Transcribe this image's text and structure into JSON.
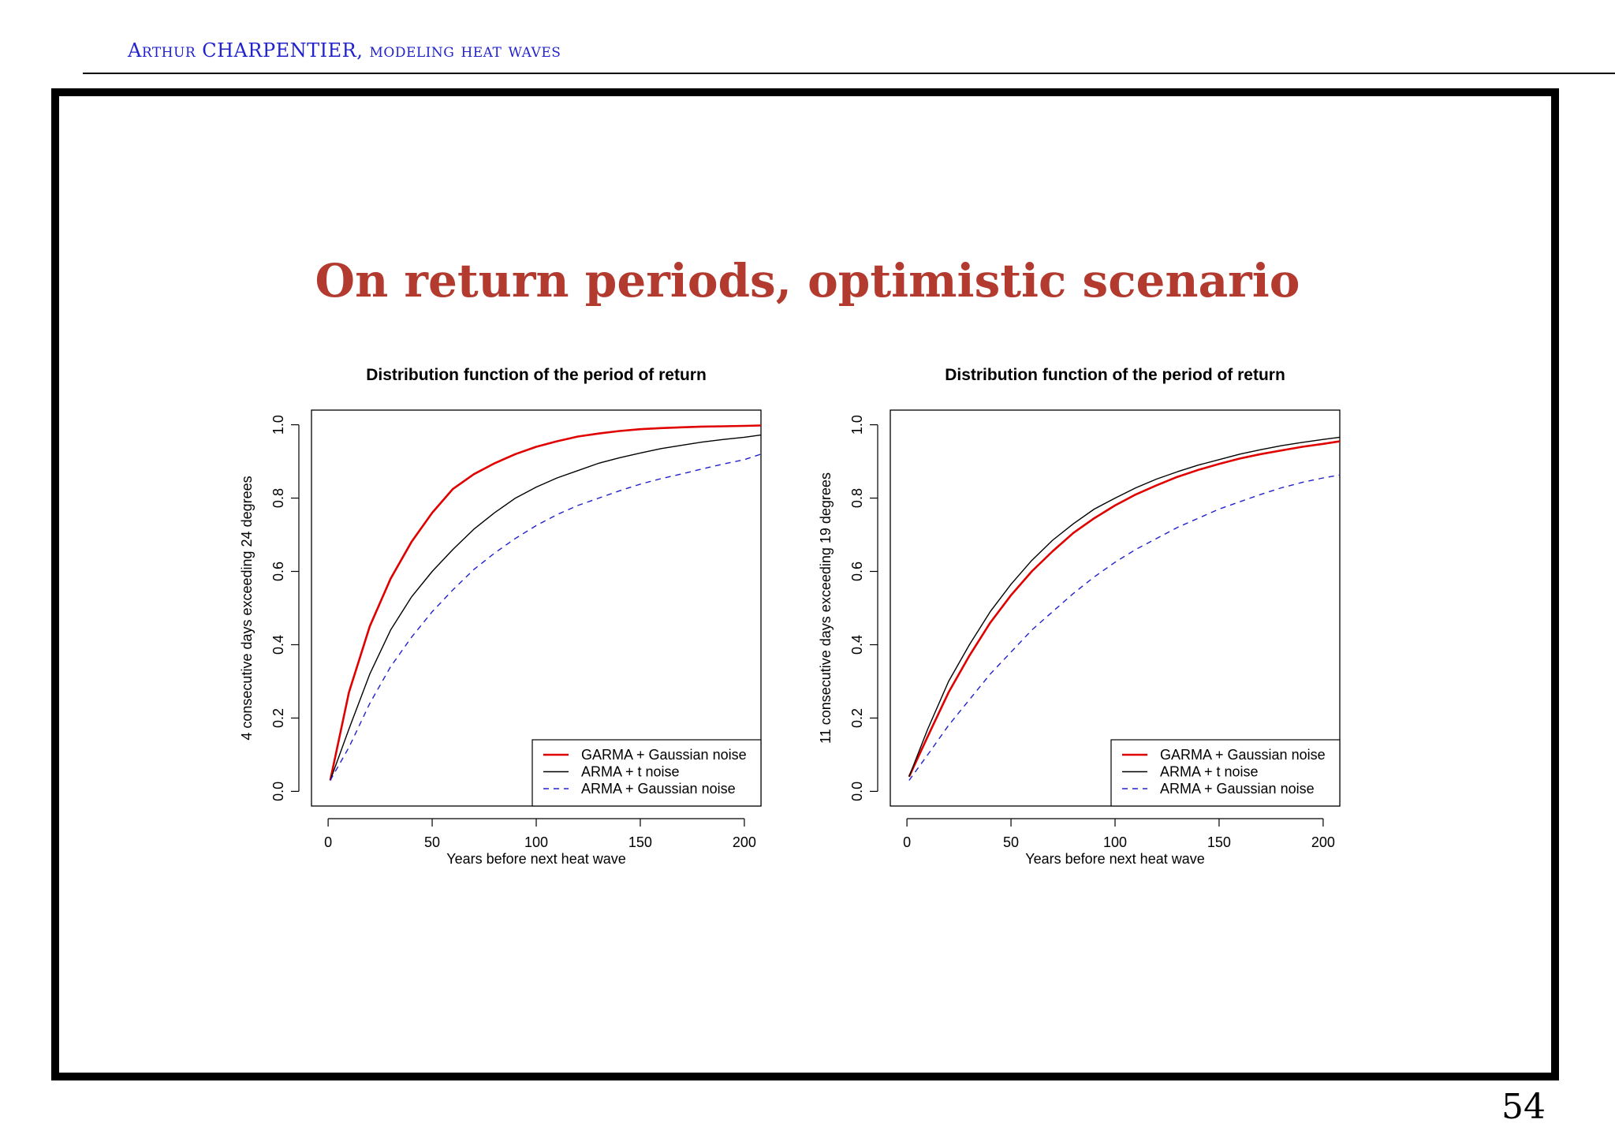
{
  "header": {
    "name": "Arthur CHARPENTIER",
    "separator": ", ",
    "topic": "modeling heat waves"
  },
  "slide": {
    "title": "On return periods, optimistic scenario",
    "page_number": "54"
  },
  "colors": {
    "header": "#2222cc",
    "title": "#b23a2e",
    "garma": "#e00000",
    "arma_t": "#000000",
    "arma_gauss": "#2020cc"
  },
  "chart_data": [
    {
      "type": "line",
      "title": "Distribution function of the period of return",
      "xlabel": "Years before next heat wave",
      "ylabel": "4 consecutive days exceeding 24 degrees",
      "xlim": [
        -8,
        208
      ],
      "ylim": [
        -0.04,
        1.04
      ],
      "xticks": [
        "0",
        "50",
        "100",
        "150",
        "200"
      ],
      "yticks": [
        "0.0",
        "0.2",
        "0.4",
        "0.6",
        "0.8",
        "1.0"
      ],
      "grid": false,
      "legend": "bottom-right",
      "x": [
        1,
        10,
        20,
        30,
        40,
        50,
        60,
        70,
        80,
        90,
        100,
        110,
        120,
        130,
        140,
        150,
        160,
        170,
        180,
        190,
        200,
        208
      ],
      "series": [
        {
          "name": "GARMA + Gaussian noise",
          "style": "solid",
          "values": [
            0.03,
            0.27,
            0.45,
            0.58,
            0.68,
            0.76,
            0.825,
            0.865,
            0.895,
            0.92,
            0.94,
            0.955,
            0.968,
            0.976,
            0.983,
            0.988,
            0.991,
            0.993,
            0.995,
            0.996,
            0.997,
            0.998
          ]
        },
        {
          "name": "ARMA + t noise",
          "style": "solid",
          "values": [
            0.03,
            0.17,
            0.32,
            0.44,
            0.53,
            0.6,
            0.66,
            0.715,
            0.76,
            0.8,
            0.83,
            0.855,
            0.875,
            0.895,
            0.91,
            0.923,
            0.935,
            0.944,
            0.953,
            0.96,
            0.966,
            0.972
          ]
        },
        {
          "name": "ARMA + Gaussian noise",
          "style": "dashed",
          "values": [
            0.03,
            0.12,
            0.24,
            0.34,
            0.42,
            0.49,
            0.55,
            0.605,
            0.65,
            0.69,
            0.725,
            0.755,
            0.78,
            0.8,
            0.82,
            0.838,
            0.853,
            0.866,
            0.88,
            0.893,
            0.905,
            0.92
          ]
        }
      ]
    },
    {
      "type": "line",
      "title": "Distribution function of the period of return",
      "xlabel": "Years before next heat wave",
      "ylabel": "11 consecutive days exceeding 19 degrees",
      "xlim": [
        -8,
        208
      ],
      "ylim": [
        -0.04,
        1.04
      ],
      "xticks": [
        "0",
        "50",
        "100",
        "150",
        "200"
      ],
      "yticks": [
        "0.0",
        "0.2",
        "0.4",
        "0.6",
        "0.8",
        "1.0"
      ],
      "grid": false,
      "legend": "bottom-right",
      "x": [
        1,
        10,
        20,
        30,
        40,
        50,
        60,
        70,
        80,
        90,
        100,
        110,
        120,
        130,
        140,
        150,
        160,
        170,
        180,
        190,
        200,
        208
      ],
      "series": [
        {
          "name": "GARMA + Gaussian noise",
          "style": "solid",
          "values": [
            0.04,
            0.15,
            0.27,
            0.37,
            0.46,
            0.535,
            0.6,
            0.655,
            0.705,
            0.745,
            0.78,
            0.81,
            0.835,
            0.858,
            0.877,
            0.893,
            0.908,
            0.92,
            0.93,
            0.94,
            0.948,
            0.955
          ]
        },
        {
          "name": "ARMA + t noise",
          "style": "solid",
          "values": [
            0.04,
            0.17,
            0.3,
            0.4,
            0.49,
            0.565,
            0.63,
            0.685,
            0.73,
            0.77,
            0.8,
            0.828,
            0.852,
            0.872,
            0.89,
            0.905,
            0.92,
            0.932,
            0.943,
            0.952,
            0.96,
            0.966
          ]
        },
        {
          "name": "ARMA + Gaussian noise",
          "style": "dashed",
          "values": [
            0.03,
            0.1,
            0.18,
            0.25,
            0.32,
            0.38,
            0.44,
            0.49,
            0.54,
            0.585,
            0.625,
            0.66,
            0.69,
            0.72,
            0.745,
            0.77,
            0.79,
            0.81,
            0.828,
            0.843,
            0.855,
            0.863
          ]
        }
      ]
    }
  ]
}
